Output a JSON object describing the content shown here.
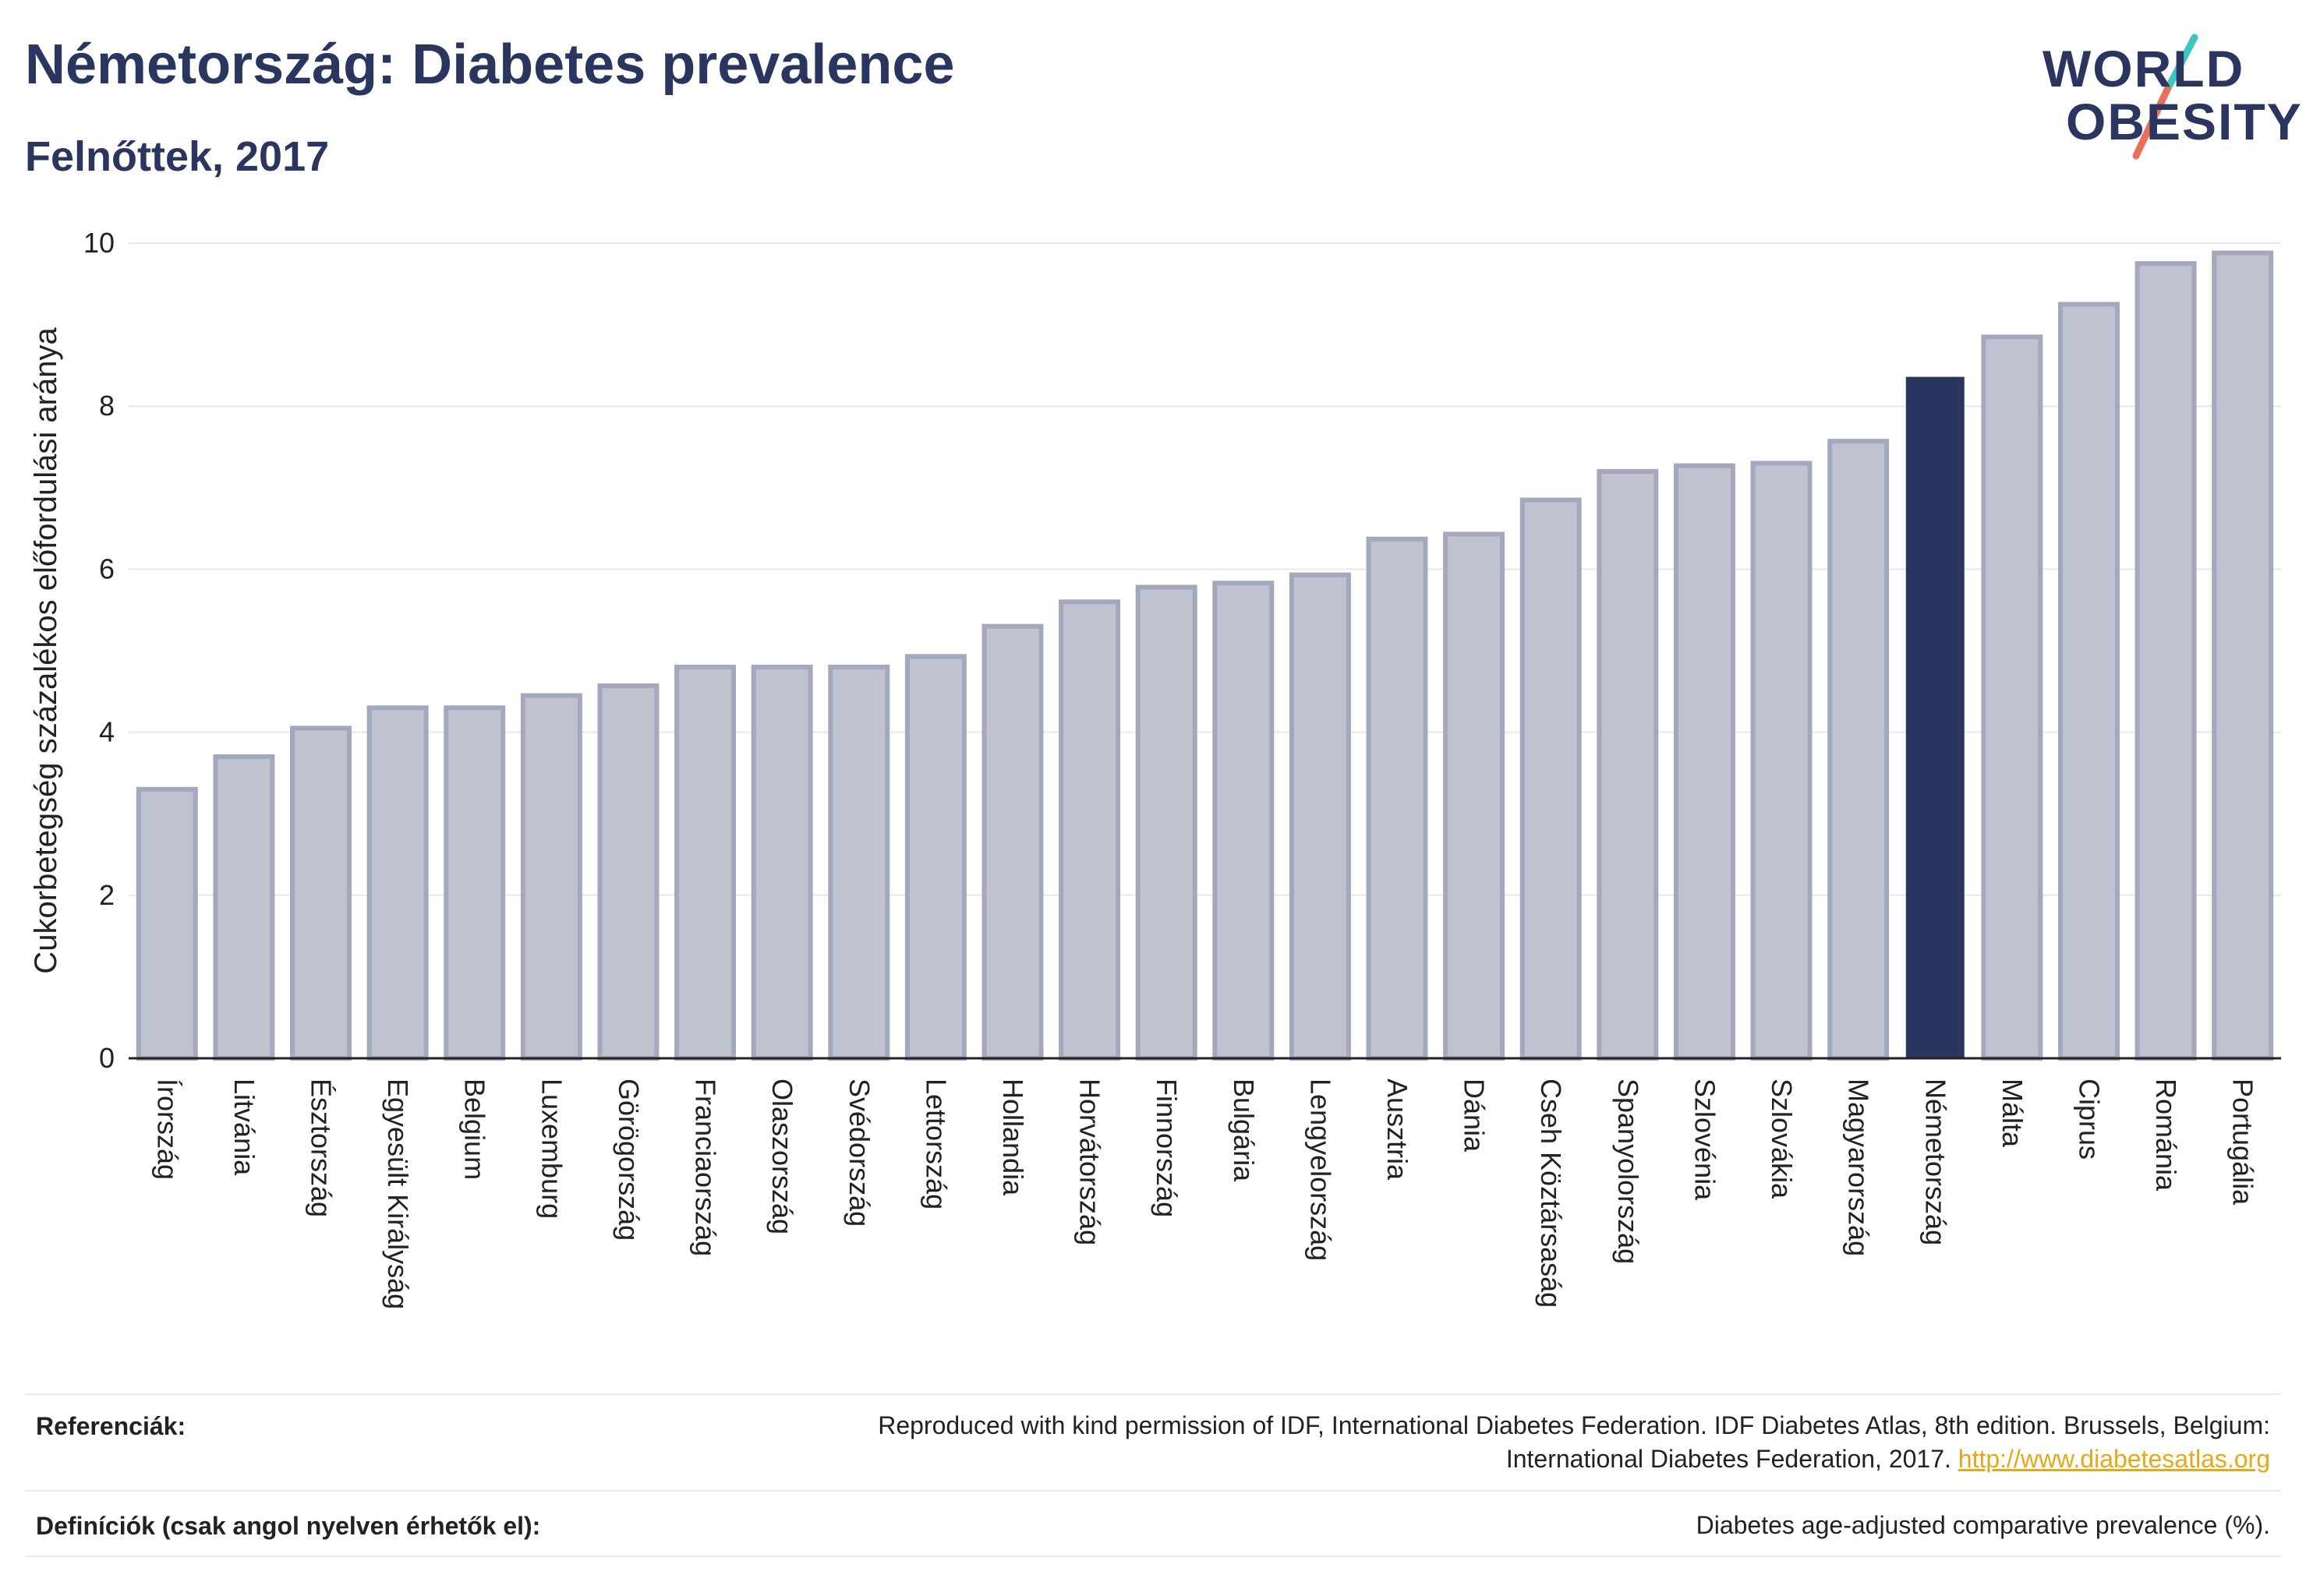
{
  "header": {
    "title": "Németország: Diabetes prevalence",
    "subtitle": "Felnőttek, 2017"
  },
  "logo": {
    "line1": "WORLD",
    "line2": "OBESITY",
    "slash_colors": [
      "#3ec7c0",
      "#e8705a"
    ]
  },
  "colors": {
    "bar": "#bfc2cf",
    "bar_border": "#a3a8bd",
    "highlight": "#2a3560",
    "grid": "#e6e8ee",
    "axis": "#222222"
  },
  "chart_data": {
    "type": "bar",
    "ylabel": "Cukorbetegség százalékos előfordulási aránya",
    "ylim": [
      0,
      10
    ],
    "yticks": [
      0,
      2,
      4,
      6,
      8,
      10
    ],
    "highlight": "Németország",
    "grid": true,
    "categories": [
      "Írország",
      "Litvánia",
      "Észtország",
      "Egyesült Királyság",
      "Belgium",
      "Luxemburg",
      "Görögország",
      "Franciaország",
      "Olaszország",
      "Svédország",
      "Lettország",
      "Hollandia",
      "Horvátország",
      "Finnország",
      "Bulgária",
      "Lengyelország",
      "Ausztria",
      "Dánia",
      "Cseh Köztársaság",
      "Spanyolország",
      "Szlovénia",
      "Szlovákia",
      "Magyarország",
      "Németország",
      "Málta",
      "Ciprus",
      "Románia",
      "Portugália"
    ],
    "values": [
      3.3,
      3.7,
      4.05,
      4.3,
      4.3,
      4.45,
      4.57,
      4.8,
      4.8,
      4.8,
      4.93,
      5.3,
      5.6,
      5.78,
      5.83,
      5.93,
      6.37,
      6.43,
      6.85,
      7.2,
      7.27,
      7.3,
      7.57,
      8.35,
      8.85,
      9.25,
      9.75,
      9.88
    ]
  },
  "footer": {
    "references_label": "Referenciák:",
    "references_text": "Reproduced with kind permission of IDF, International Diabetes Federation. IDF Diabetes Atlas, 8th edition. Brussels, Belgium:",
    "references_text2": "International Diabetes Federation, 2017.",
    "references_link": "http://www.diabetesatlas.org",
    "definitions_label": "Definíciók (csak angol nyelven érhetők el):",
    "definitions_text": "Diabetes age-adjusted comparative prevalence (%)."
  }
}
